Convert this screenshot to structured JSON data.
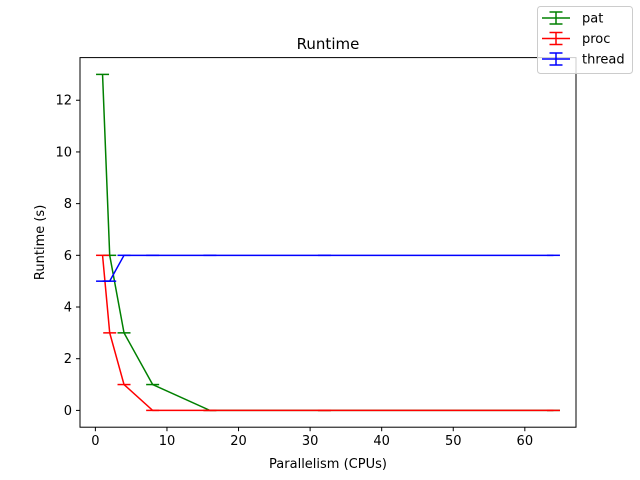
{
  "chart_data": {
    "type": "line",
    "title": "Runtime",
    "xlabel": "Parallelism (CPUs)",
    "ylabel": "Runtime (s)",
    "xlim": [
      -2.15,
      67.15
    ],
    "ylim": [
      -0.65,
      13.65
    ],
    "xticks": [
      0,
      10,
      20,
      30,
      40,
      50,
      60
    ],
    "yticks": [
      0,
      2,
      4,
      6,
      8,
      10,
      12
    ],
    "x": [
      1,
      2,
      4,
      8,
      16,
      32,
      64
    ],
    "grid": false,
    "legend_position": "top-right",
    "series": [
      {
        "name": "pat",
        "color": "#008000",
        "values": [
          13,
          6,
          3,
          1,
          0,
          0,
          0
        ],
        "error": [
          0,
          0,
          0,
          0,
          0,
          0,
          0
        ]
      },
      {
        "name": "proc",
        "color": "#ff0000",
        "values": [
          6,
          3,
          1,
          0,
          0,
          0,
          0
        ],
        "error": [
          0,
          0,
          0,
          0,
          0,
          0,
          0
        ]
      },
      {
        "name": "thread",
        "color": "#0000ff",
        "values": [
          5,
          5,
          6,
          6,
          6,
          6,
          6
        ],
        "error": [
          0,
          0,
          0,
          0,
          0,
          0,
          0
        ]
      }
    ]
  }
}
